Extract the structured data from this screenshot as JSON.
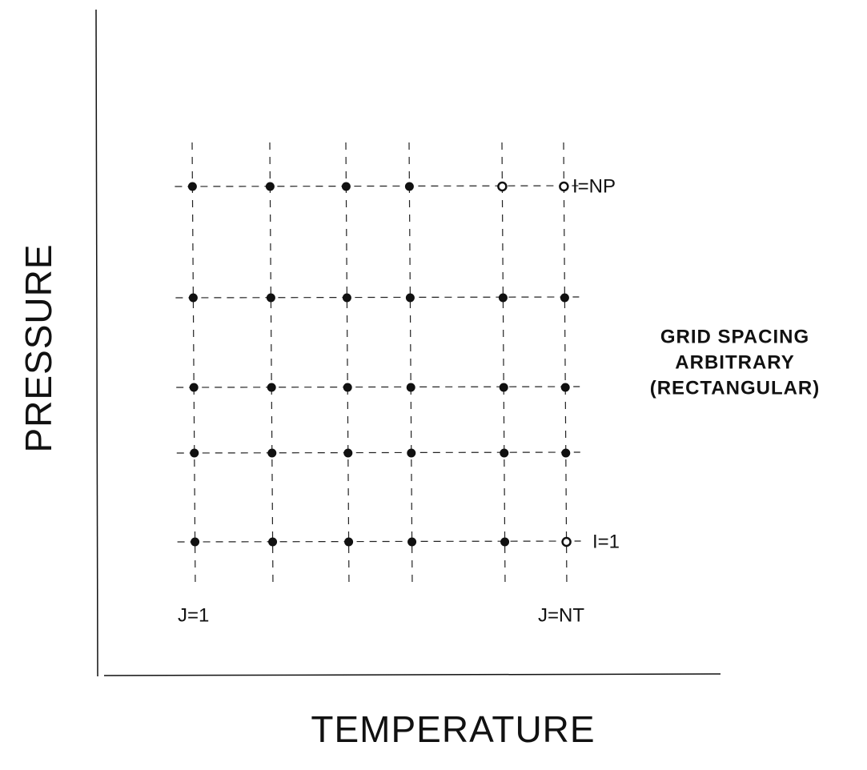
{
  "axes": {
    "x_label": "TEMPERATURE",
    "y_label": "PRESSURE"
  },
  "labels": {
    "row_top": "I=NP",
    "row_bottom": "I=1",
    "col_left": "J=1",
    "col_right": "J=NT"
  },
  "note": [
    "GRID SPACING",
    "ARBITRARY",
    "(RECTANGULAR)"
  ]
}
